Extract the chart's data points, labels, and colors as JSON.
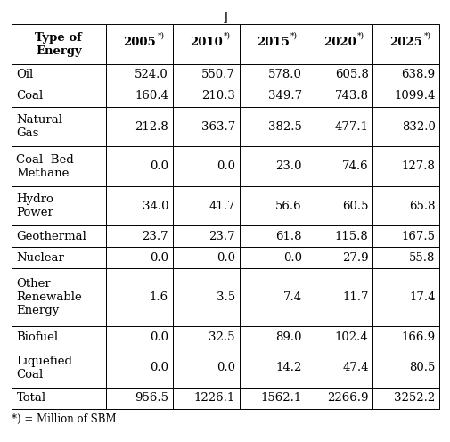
{
  "bracket_text": "]",
  "footnote": "*) = Million of SBM",
  "col_headers": [
    "Type of\nEnergy",
    "2005",
    "2010",
    "2015",
    "2020",
    "2025"
  ],
  "rows": [
    [
      "Oil",
      "524.0",
      "550.7",
      "578.0",
      "605.8",
      "638.9"
    ],
    [
      "Coal",
      "160.4",
      "210.3",
      "349.7",
      "743.8",
      "1099.4"
    ],
    [
      "Natural\nGas",
      "212.8",
      "363.7",
      "382.5",
      "477.1",
      "832.0"
    ],
    [
      "Coal  Bed\nMethane",
      "0.0",
      "0.0",
      "23.0",
      "74.6",
      "127.8"
    ],
    [
      "Hydro\nPower",
      "34.0",
      "41.7",
      "56.6",
      "60.5",
      "65.8"
    ],
    [
      "Geothermal",
      "23.7",
      "23.7",
      "61.8",
      "115.8",
      "167.5"
    ],
    [
      "Nuclear",
      "0.0",
      "0.0",
      "0.0",
      "27.9",
      "55.8"
    ],
    [
      "Other\nRenewable\nEnergy",
      "1.6",
      "3.5",
      "7.4",
      "11.7",
      "17.4"
    ],
    [
      "Biofuel",
      "0.0",
      "32.5",
      "89.0",
      "102.4",
      "166.9"
    ],
    [
      "Liquefied\nCoal",
      "0.0",
      "0.0",
      "14.2",
      "47.4",
      "80.5"
    ],
    [
      "Total",
      "956.5",
      "1226.1",
      "1562.1",
      "2266.9",
      "3252.2"
    ]
  ],
  "col_widths_ratio": [
    1.42,
    1.0,
    1.0,
    1.0,
    1.0,
    1.0
  ],
  "lines_per_row": [
    2,
    1,
    1,
    2,
    2,
    2,
    1,
    1,
    3,
    1,
    2,
    1
  ],
  "header_fontsize": 9.5,
  "body_fontsize": 9.5,
  "sup_fontsize": 6.5,
  "footnote_fontsize": 8.5,
  "fig_width": 5.06,
  "fig_height": 4.96,
  "dpi": 100
}
